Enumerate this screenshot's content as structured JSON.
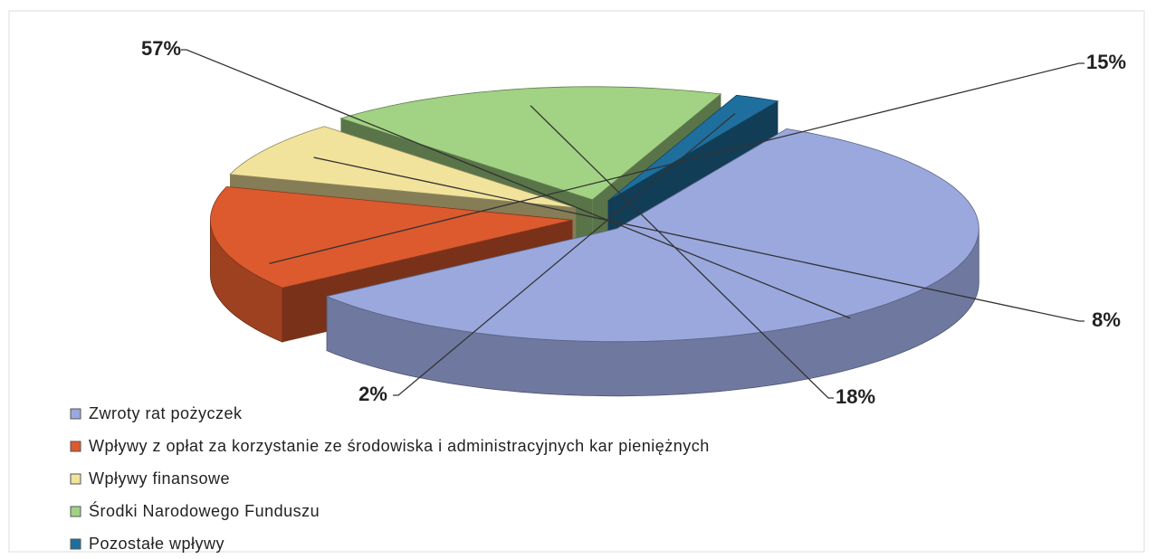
{
  "chart_data": {
    "type": "pie3d",
    "categories": [
      "Zwroty rat pożyczek",
      "Wpływy z opłat za korzystanie ze środowiska i administracyjnych kar pieniężnych",
      "Wpływy finansowe",
      "Środki Narodowego Funduszu",
      "Pozostałe wpływy"
    ],
    "values": [
      57,
      15,
      8,
      18,
      2
    ],
    "value_labels": [
      "57%",
      "15%",
      "8%",
      "18%",
      "2%"
    ],
    "colors": [
      "#9aa8de",
      "#dc5a2e",
      "#f1e39c",
      "#a2d283",
      "#1e6f9e"
    ]
  }
}
